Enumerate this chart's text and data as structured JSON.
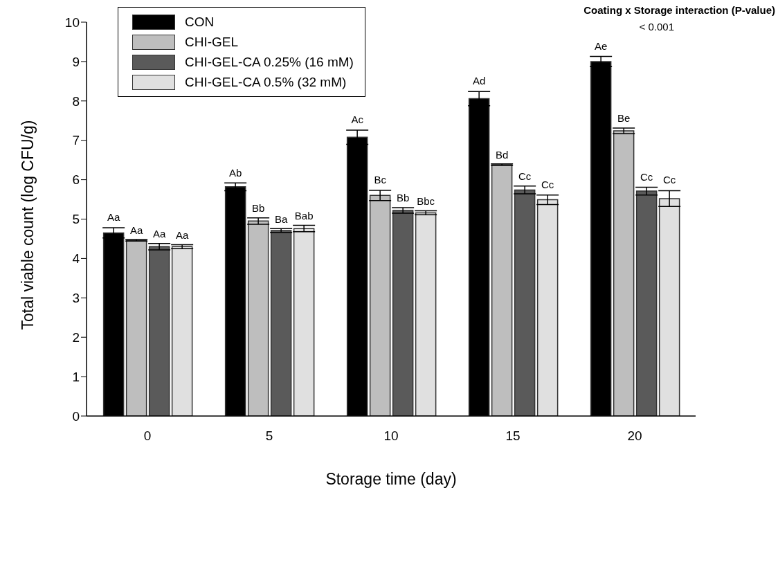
{
  "chart_data": {
    "type": "bar",
    "xlabel": "Storage time (day)",
    "ylabel": "Total viable count (log CFU/g)",
    "categories": [
      "0",
      "5",
      "10",
      "15",
      "20"
    ],
    "series": [
      {
        "name": "CON",
        "color": "#000000",
        "values": [
          4.65,
          5.82,
          7.08,
          8.06,
          9.0
        ],
        "errors": [
          0.13,
          0.1,
          0.18,
          0.18,
          0.13
        ],
        "value_labels": [
          "Aa",
          "Ab",
          "Ac",
          "Ad",
          "Ae"
        ]
      },
      {
        "name": "CHI-GEL",
        "color": "#bebebe",
        "values": [
          4.46,
          4.95,
          5.6,
          6.38,
          7.24
        ],
        "errors": [
          0.02,
          0.08,
          0.13,
          0.02,
          0.07
        ],
        "value_labels": [
          "Aa",
          "Bb",
          "Bc",
          "Bd",
          "Be"
        ]
      },
      {
        "name": "CHI-GEL-CA 0.25% (16 mM)",
        "color": "#5a5a5a",
        "values": [
          4.3,
          4.71,
          5.22,
          5.74,
          5.71
        ],
        "errors": [
          0.08,
          0.05,
          0.07,
          0.1,
          0.1
        ],
        "value_labels": [
          "Aa",
          "Ba",
          "Bb",
          "Cc",
          "Cc"
        ]
      },
      {
        "name": "CHI-GEL-CA 0.5% (32 mM)",
        "color": "#e0e0e0",
        "values": [
          4.3,
          4.76,
          5.16,
          5.49,
          5.52
        ],
        "errors": [
          0.05,
          0.08,
          0.05,
          0.12,
          0.2
        ],
        "value_labels": [
          "Aa",
          "Bab",
          "Bbc",
          "Cc",
          "Cc"
        ]
      }
    ],
    "ylim": [
      0,
      10
    ],
    "yticks": [
      0,
      1,
      2,
      3,
      4,
      5,
      6,
      7,
      8,
      9,
      10
    ],
    "grid": false,
    "legend": "top left",
    "annotations": [
      "Coating x Storage interaction (P-value)",
      "< 0.001"
    ]
  }
}
